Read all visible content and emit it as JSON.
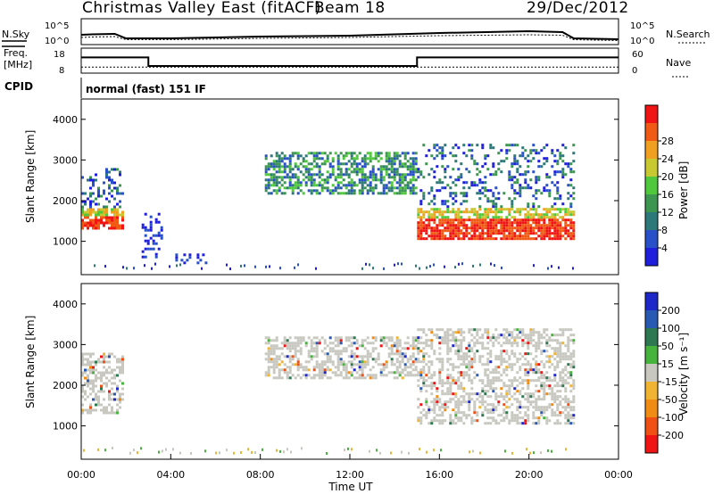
{
  "header": {
    "station": "Christmas Valley East (fitACF)",
    "beam": "Beam 18",
    "date": "29/Dec/2012"
  },
  "labels": {
    "nsky": "N.Sky",
    "nsearch": "N.Search",
    "freq_line1": "Freq.",
    "freq_line2": "[MHz]",
    "nave": "Nave",
    "cpid": "CPID",
    "mode": "normal (fast) 151 IF"
  },
  "colors": {
    "power": [
      "#1e1edc",
      "#2850c8",
      "#2d7878",
      "#3c9650",
      "#50c83c",
      "#c8c830",
      "#f0a020",
      "#f05a14",
      "#f01414"
    ],
    "velocity": [
      "#1e28c8",
      "#285ab4",
      "#2d7850",
      "#46b43c",
      "#c8c8c0",
      "#f0b432",
      "#f08c14",
      "#f05014",
      "#f01414"
    ]
  },
  "chart_data": [
    {
      "type": "line",
      "name": "noise",
      "left_label": "N.Sky",
      "right_label": "N.Search",
      "left_ticks": [
        "10^5",
        "10^0"
      ],
      "right_ticks": [
        "10^5",
        "10^0"
      ],
      "x": [
        0,
        0.5,
        1.5,
        2,
        4,
        8,
        12,
        16,
        20,
        21.5,
        22,
        24
      ],
      "series": [
        {
          "name": "N.Sky",
          "values": [
            1.8,
            1.9,
            2.0,
            1.0,
            1.0,
            1.4,
            1.6,
            2.2,
            2.6,
            2.4,
            1.0,
            0.8
          ]
        },
        {
          "name": "N.Search",
          "values": [
            1.2,
            1.3,
            1.4,
            0.7,
            0.7,
            1.0,
            1.2,
            1.6,
            1.8,
            1.7,
            0.7,
            0.5
          ]
        }
      ]
    },
    {
      "type": "line",
      "name": "frequency_nave",
      "left_label": "Freq. [MHz]",
      "right_label": "Nave",
      "left_ticks": [
        18,
        8
      ],
      "right_ticks": [
        60,
        0
      ],
      "x": [
        0,
        3,
        3,
        15,
        15,
        24
      ],
      "series": [
        {
          "name": "Freq.",
          "values": [
            14.5,
            14.5,
            10.5,
            10.5,
            14.5,
            14.5
          ]
        },
        {
          "name": "Nave",
          "values": [
            12,
            12,
            12,
            12,
            12,
            12
          ]
        }
      ]
    },
    {
      "type": "heatmap",
      "name": "power",
      "xlabel": "",
      "ylabel": "Slant Range [km]",
      "ylim": [
        180,
        4500
      ],
      "yticks": [
        1000,
        2000,
        3000,
        4000
      ],
      "colorbar_label": "Power [dB]",
      "colorbar_ticks": [
        4,
        8,
        12,
        16,
        20,
        24,
        28
      ],
      "regions": [
        {
          "t": [
            0,
            1.8
          ],
          "range": [
            1300,
            2800
          ],
          "level": "strong"
        },
        {
          "t": [
            2.7,
            3.6
          ],
          "range": [
            600,
            1700
          ],
          "level": "weak"
        },
        {
          "t": [
            4.2,
            5.6
          ],
          "range": [
            450,
            700
          ],
          "level": "weak"
        },
        {
          "t": [
            8.2,
            15
          ],
          "range": [
            2200,
            3200
          ],
          "level": "medium"
        },
        {
          "t": [
            15,
            22
          ],
          "range": [
            1050,
            3400
          ],
          "level": "strong"
        }
      ]
    },
    {
      "type": "heatmap",
      "name": "velocity",
      "xlabel": "Time UT",
      "ylabel": "Slant Range [km]",
      "ylim": [
        180,
        4500
      ],
      "yticks": [
        1000,
        2000,
        3000,
        4000
      ],
      "xticks": [
        "00:00",
        "04:00",
        "08:00",
        "12:00",
        "16:00",
        "20:00",
        "00:00"
      ],
      "colorbar_label": "Velocity [m s⁻¹]",
      "colorbar_ticks": [
        200,
        100,
        50,
        15,
        -15,
        -50,
        -100,
        -200
      ],
      "regions": [
        {
          "t": [
            0,
            1.8
          ],
          "range": [
            1300,
            2800
          ],
          "level": "near-zero"
        },
        {
          "t": [
            8.2,
            15
          ],
          "range": [
            2200,
            3200
          ],
          "level": "near-zero"
        },
        {
          "t": [
            15,
            22
          ],
          "range": [
            1050,
            3400
          ],
          "level": "near-zero"
        }
      ]
    }
  ]
}
